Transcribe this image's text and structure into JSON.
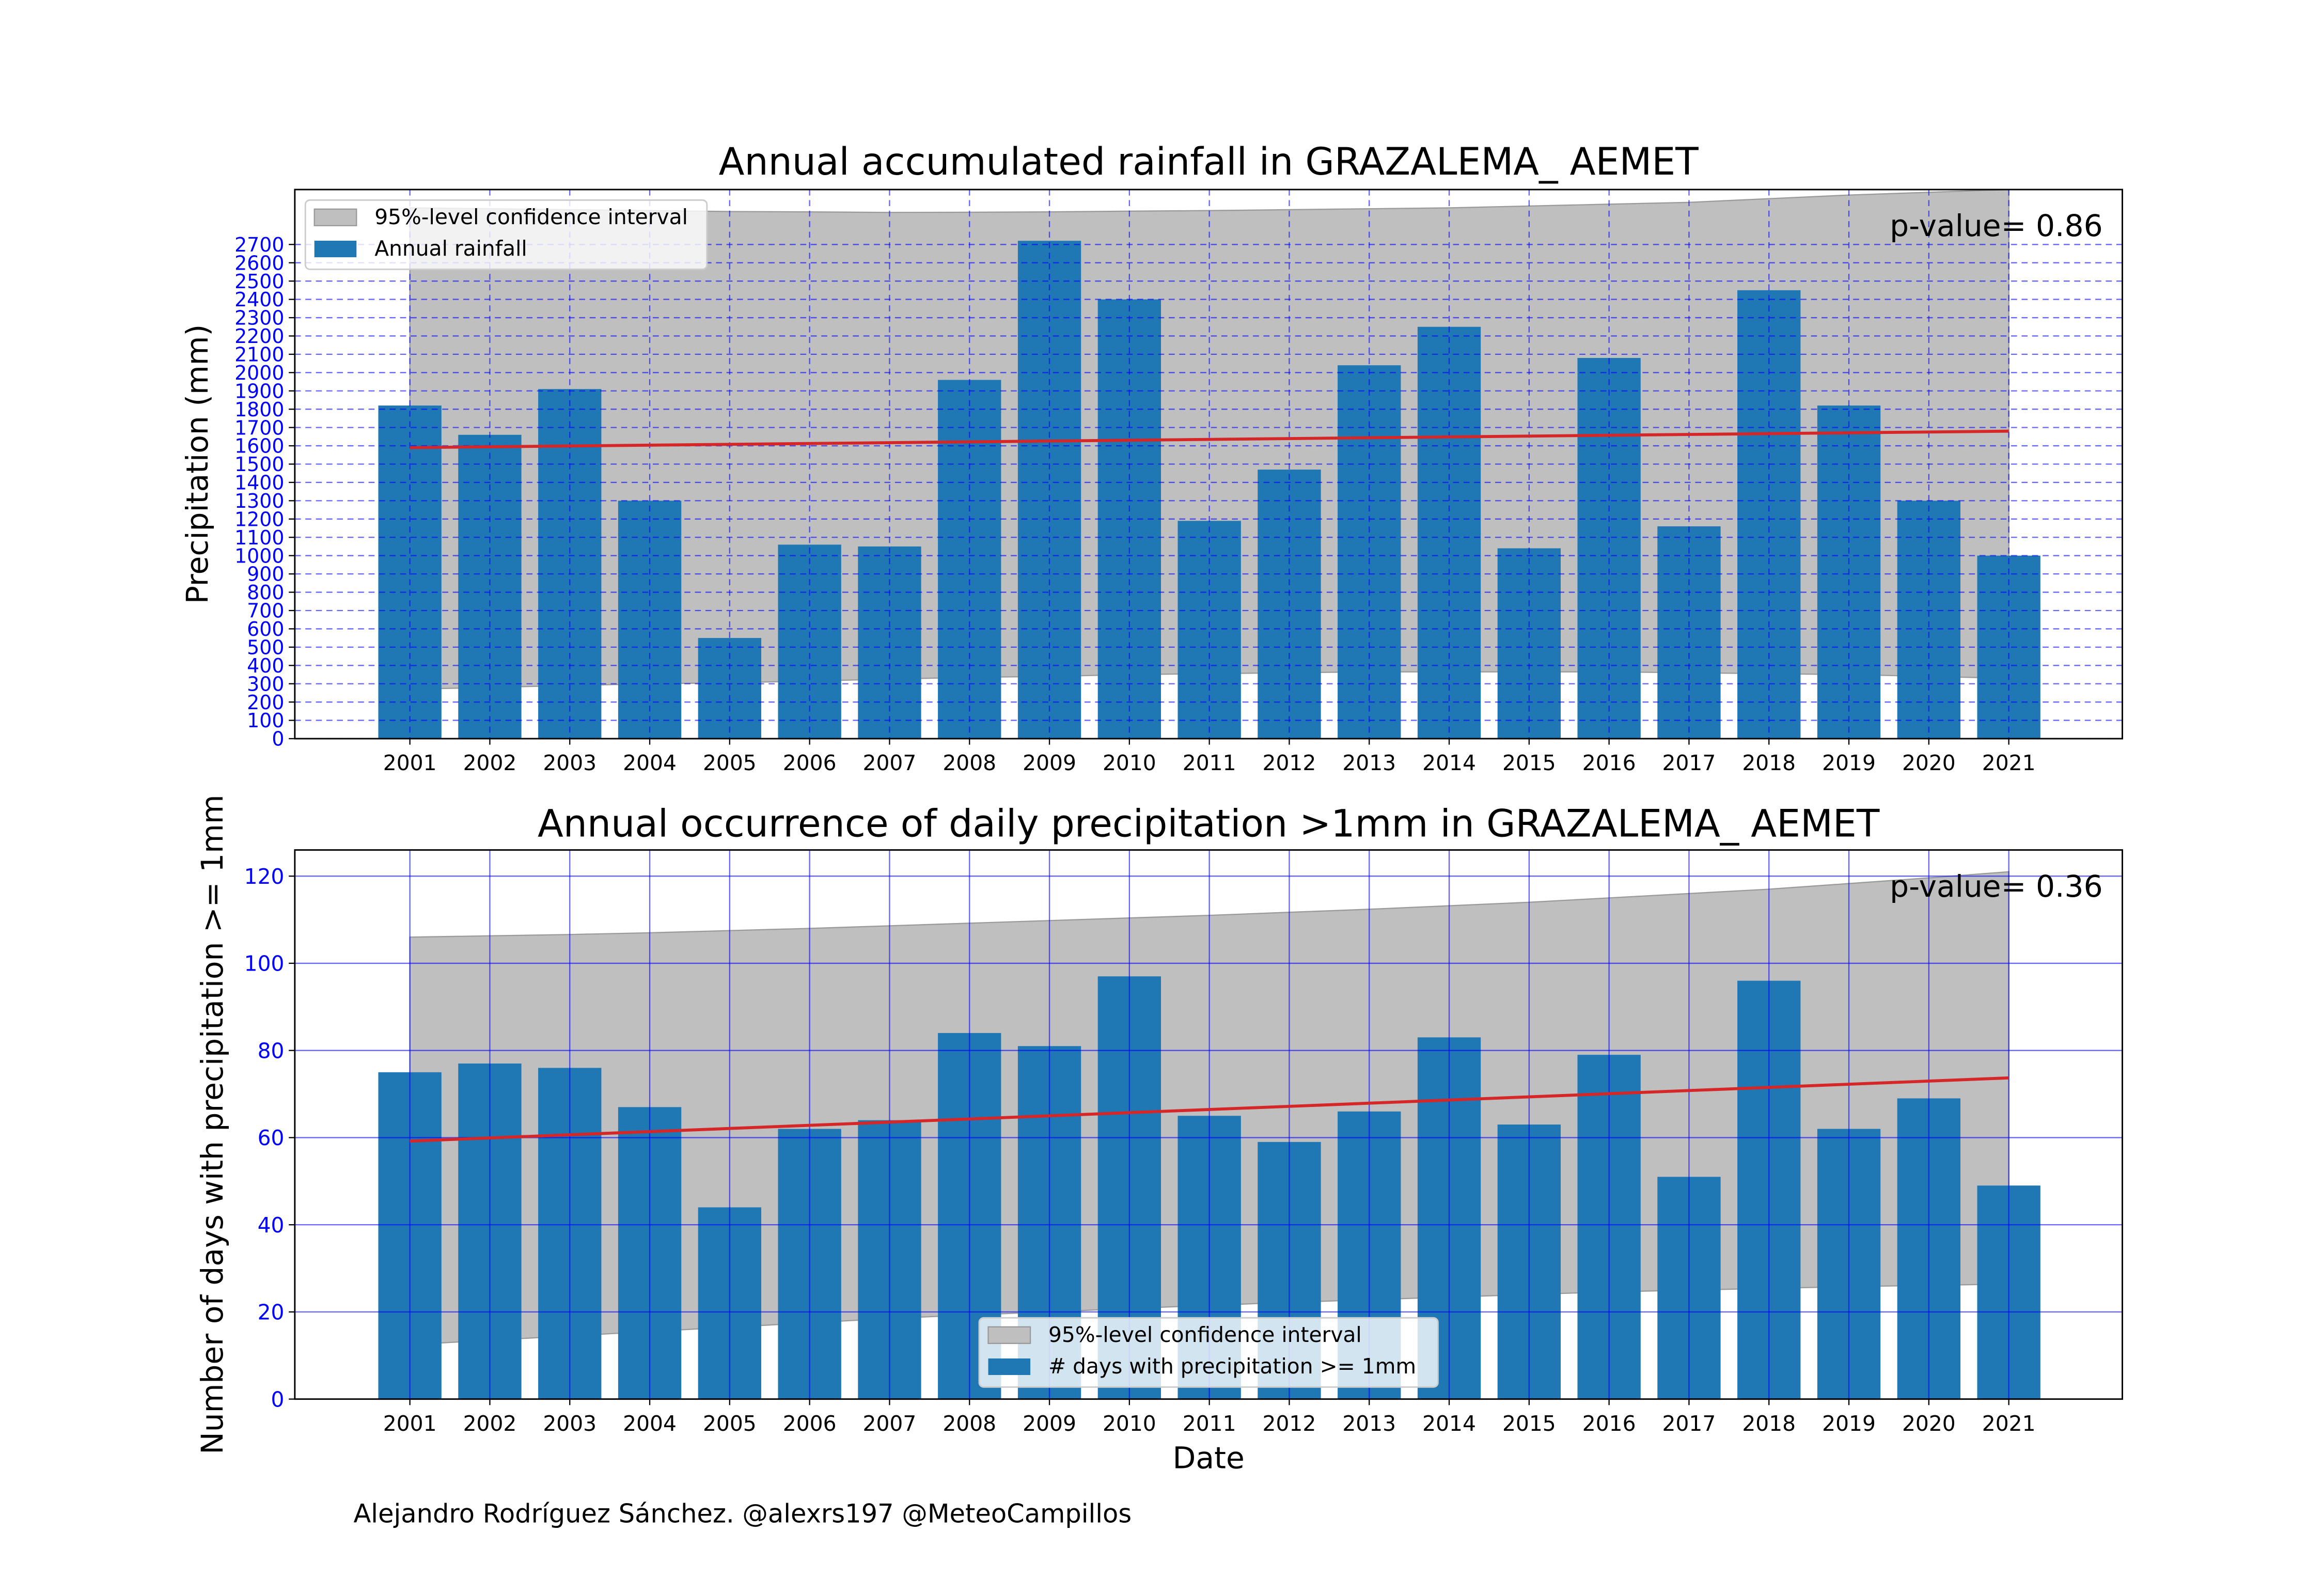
{
  "footer": "Alejandro Rodríguez Sánchez. @alexrs197 @MeteoCampillos",
  "chart_data": [
    {
      "type": "bar",
      "title": "Annual accumulated rainfall in GRAZALEMA_ AEMET",
      "xlabel": "",
      "ylabel": "Precipitation (mm)",
      "categories": [
        "2001",
        "2002",
        "2003",
        "2004",
        "2005",
        "2006",
        "2007",
        "2008",
        "2009",
        "2010",
        "2011",
        "2012",
        "2013",
        "2014",
        "2015",
        "2016",
        "2017",
        "2018",
        "2019",
        "2020",
        "2021"
      ],
      "series": [
        {
          "name": "Annual rainfall",
          "values": [
            1820,
            1660,
            1910,
            1300,
            550,
            1060,
            1050,
            1960,
            2720,
            2400,
            1190,
            1470,
            2040,
            2250,
            1040,
            2080,
            1160,
            2450,
            1820,
            1300,
            1000
          ]
        }
      ],
      "trend": {
        "start": 1590,
        "end": 1680
      },
      "confidence_interval": {
        "name": "95%-level confidence interval",
        "lower": [
          270,
          280,
          290,
          300,
          305,
          315,
          325,
          335,
          340,
          350,
          355,
          360,
          365,
          365,
          365,
          365,
          360,
          355,
          350,
          340,
          330
        ],
        "upper": [
          2900,
          2895,
          2890,
          2885,
          2880,
          2878,
          2875,
          2876,
          2878,
          2882,
          2885,
          2890,
          2895,
          2900,
          2910,
          2920,
          2930,
          2950,
          2970,
          2985,
          3000
        ]
      },
      "annotation": "p-value= 0.86",
      "ylim": [
        0,
        3000
      ],
      "yticks": [
        0,
        100,
        200,
        300,
        400,
        500,
        600,
        700,
        800,
        900,
        1000,
        1100,
        1200,
        1300,
        1400,
        1500,
        1600,
        1700,
        1800,
        1900,
        2000,
        2100,
        2200,
        2300,
        2400,
        2500,
        2600,
        2700
      ],
      "grid": true,
      "legend_position": "top-left",
      "colors": {
        "bar": "#1f77b4",
        "trend": "#d62728",
        "band": "#bfbfbf",
        "tick": "#0000ff",
        "grid": "#0000ff"
      }
    },
    {
      "type": "bar",
      "title": "Annual occurrence of daily precipitation >1mm in GRAZALEMA_ AEMET",
      "xlabel": "Date",
      "ylabel": "Number of days with precipitation >= 1mm",
      "categories": [
        "2001",
        "2002",
        "2003",
        "2004",
        "2005",
        "2006",
        "2007",
        "2008",
        "2009",
        "2010",
        "2011",
        "2012",
        "2013",
        "2014",
        "2015",
        "2016",
        "2017",
        "2018",
        "2019",
        "2020",
        "2021"
      ],
      "series": [
        {
          "name": "# days with precipitation >= 1mm",
          "values": [
            75,
            77,
            76,
            67,
            44,
            62,
            64,
            84,
            81,
            97,
            65,
            59,
            66,
            83,
            63,
            79,
            51,
            96,
            62,
            69,
            49
          ]
        }
      ],
      "trend": {
        "start": 59.2,
        "end": 73.7
      },
      "confidence_interval": {
        "name": "95%-level confidence interval",
        "lower": [
          12.5,
          13.5,
          14.5,
          15.5,
          16.5,
          17.5,
          18.5,
          19.3,
          20.0,
          20.8,
          21.5,
          22.2,
          22.8,
          23.4,
          24.0,
          24.6,
          25.0,
          25.4,
          25.8,
          26.1,
          26.4
        ],
        "upper": [
          106,
          106.3,
          106.6,
          107,
          107.5,
          108,
          108.6,
          109.2,
          109.8,
          110.4,
          111,
          111.7,
          112.4,
          113.2,
          114,
          115,
          116,
          117,
          118.3,
          119.6,
          121
        ]
      },
      "annotation": "p-value= 0.36",
      "ylim": [
        0,
        126
      ],
      "yticks": [
        0,
        20,
        40,
        60,
        80,
        100,
        120
      ],
      "grid": true,
      "legend_position": "bottom-center",
      "colors": {
        "bar": "#1f77b4",
        "trend": "#d62728",
        "band": "#bfbfbf",
        "tick": "#0000ff",
        "grid": "#0000ff"
      }
    }
  ]
}
